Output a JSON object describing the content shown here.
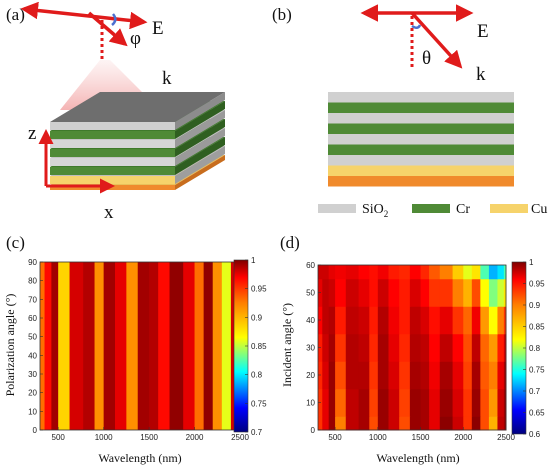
{
  "panel_labels": [
    "(a)",
    "(b)",
    "(c)",
    "(d)"
  ],
  "schematic_a": {
    "field_label": "E",
    "angle_symbol": "φ",
    "wavevector_label": "k",
    "axis_z": "z",
    "axis_x": "x"
  },
  "schematic_b": {
    "field_label": "E",
    "angle_symbol": "θ",
    "wavevector_label": "k"
  },
  "materials_legend": [
    {
      "label": "SiO",
      "subscript": "2",
      "color": "#d0d0d0"
    },
    {
      "label": "Cr",
      "subscript": "",
      "color": "#4f8a36"
    },
    {
      "label": "Cu",
      "subscript": "",
      "color": "#f6d36b"
    }
  ],
  "layer_stack_colors": [
    "#d0d0d0",
    "#4f8a36",
    "#d0d0d0",
    "#4f8a36",
    "#d0d0d0",
    "#4f8a36",
    "#d0d0d0",
    "#f6d36b",
    "#f08a2c"
  ],
  "chart_data": [
    {
      "type": "heatmap",
      "panel": "(c)",
      "xlabel": "Wavelength (nm)",
      "ylabel": "Polarization angle (°)",
      "xlim": [
        300,
        2500
      ],
      "ylim": [
        0,
        90
      ],
      "xticks": [
        "500",
        "1000",
        "1500",
        "2000",
        "2500"
      ],
      "yticks": [
        "0",
        "10",
        "20",
        "30",
        "40",
        "50",
        "60",
        "70",
        "80",
        "90"
      ],
      "colorbar_ticks": [
        "0.7",
        "0.75",
        "0.8",
        "0.85",
        "0.9",
        "0.95",
        "1"
      ],
      "colorbar_range": [
        0.7,
        1.0
      ],
      "x": [
        300,
        400,
        450,
        550,
        700,
        850,
        950,
        1050,
        1200,
        1300,
        1450,
        1550,
        1650,
        1800,
        1950,
        2050,
        2150,
        2250,
        2350,
        2450,
        2500
      ],
      "values": [
        0.93,
        0.96,
        0.99,
        0.9,
        0.975,
        0.985,
        0.92,
        0.99,
        0.97,
        0.92,
        0.99,
        0.985,
        0.96,
        0.995,
        0.97,
        0.93,
        0.995,
        0.92,
        0.88,
        0.975,
        0.99
      ],
      "note_dependence": "uniform along polarization angle"
    },
    {
      "type": "heatmap",
      "panel": "(d)",
      "xlabel": "Wavelength (nm)",
      "ylabel": "Incident angle (°)",
      "xlim": [
        300,
        2500
      ],
      "ylim": [
        0,
        60
      ],
      "xticks": [
        "500",
        "1000",
        "1500",
        "2000",
        "2500"
      ],
      "yticks": [
        "0",
        "10",
        "20",
        "30",
        "40",
        "50",
        "60"
      ],
      "colorbar_ticks": [
        "0.6",
        "0.65",
        "0.7",
        "0.75",
        "0.8",
        "0.85",
        "0.9",
        "0.95",
        "1"
      ],
      "colorbar_range": [
        0.6,
        1.0
      ],
      "x": [
        300,
        400,
        450,
        550,
        700,
        850,
        950,
        1050,
        1200,
        1300,
        1450,
        1550,
        1650,
        1800,
        1950,
        2050,
        2150,
        2250,
        2350,
        2450,
        2500
      ],
      "y": [
        0,
        10,
        20,
        30,
        40,
        50,
        60
      ],
      "values": [
        [
          0.93,
          0.96,
          0.99,
          0.9,
          0.975,
          0.985,
          0.92,
          0.99,
          0.97,
          0.92,
          0.99,
          0.985,
          0.96,
          0.995,
          0.97,
          0.93,
          0.995,
          0.92,
          0.88,
          0.975,
          0.99
        ],
        [
          0.93,
          0.96,
          0.99,
          0.91,
          0.975,
          0.985,
          0.925,
          0.99,
          0.97,
          0.925,
          0.99,
          0.985,
          0.96,
          0.99,
          0.965,
          0.93,
          0.99,
          0.92,
          0.89,
          0.97,
          0.99
        ],
        [
          0.935,
          0.965,
          0.99,
          0.92,
          0.98,
          0.98,
          0.93,
          0.985,
          0.965,
          0.93,
          0.985,
          0.98,
          0.955,
          0.985,
          0.96,
          0.925,
          0.985,
          0.915,
          0.9,
          0.96,
          0.985
        ],
        [
          0.94,
          0.97,
          0.985,
          0.93,
          0.98,
          0.975,
          0.935,
          0.985,
          0.96,
          0.935,
          0.98,
          0.975,
          0.95,
          0.975,
          0.95,
          0.92,
          0.975,
          0.91,
          0.89,
          0.94,
          0.97
        ],
        [
          0.95,
          0.975,
          0.98,
          0.94,
          0.975,
          0.97,
          0.94,
          0.98,
          0.955,
          0.94,
          0.975,
          0.965,
          0.945,
          0.96,
          0.93,
          0.91,
          0.955,
          0.89,
          0.85,
          0.9,
          0.93
        ],
        [
          0.96,
          0.975,
          0.97,
          0.95,
          0.97,
          0.96,
          0.945,
          0.97,
          0.95,
          0.94,
          0.965,
          0.95,
          0.93,
          0.93,
          0.9,
          0.88,
          0.92,
          0.85,
          0.8,
          0.83,
          0.86
        ],
        [
          0.97,
          0.97,
          0.96,
          0.955,
          0.96,
          0.95,
          0.945,
          0.955,
          0.94,
          0.935,
          0.95,
          0.935,
          0.915,
          0.9,
          0.87,
          0.84,
          0.86,
          0.78,
          0.72,
          0.74,
          0.78
        ]
      ]
    }
  ]
}
